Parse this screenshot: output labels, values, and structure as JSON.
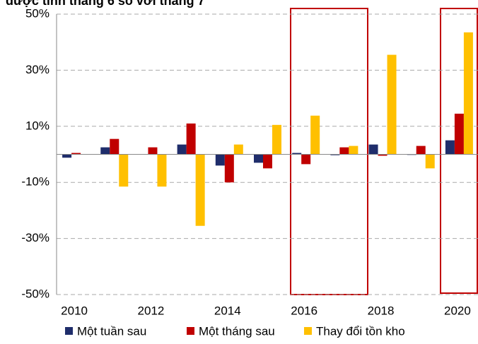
{
  "chart_data": {
    "type": "bar",
    "title": "được tính tháng 6 so với tháng 7",
    "categories": [
      "2010",
      null,
      "2012",
      null,
      "2014",
      null,
      "2016",
      null,
      "2018",
      null,
      "2020"
    ],
    "series": [
      {
        "name": "Một tuần sau",
        "color": "#1f2d6b",
        "values": [
          -1.2,
          2.5,
          0,
          3.5,
          -4,
          -3,
          0.5,
          -0.3,
          3.5,
          -0.2,
          5
        ]
      },
      {
        "name": "Một tháng sau",
        "color": "#c00000",
        "values": [
          0.5,
          5.5,
          2.5,
          11,
          -10,
          -5,
          -3.5,
          2.5,
          -0.5,
          3,
          14.5
        ]
      },
      {
        "name": "Thay đổi tồn kho",
        "color": "#ffc000",
        "values": [
          0,
          -11.5,
          -11.5,
          -25.5,
          3.5,
          10.5,
          13.8,
          3,
          35.5,
          -5,
          43.5
        ]
      }
    ],
    "ylim": [
      -50,
      50
    ],
    "yticks": [
      {
        "value": -50,
        "label": "-50%"
      },
      {
        "value": -30,
        "label": "-30%"
      },
      {
        "value": -10,
        "label": "-10%"
      },
      {
        "value": 10,
        "label": "10%"
      },
      {
        "value": 30,
        "label": "30%"
      },
      {
        "value": 50,
        "label": "50%"
      }
    ],
    "grid": true,
    "legend": "bottom"
  }
}
